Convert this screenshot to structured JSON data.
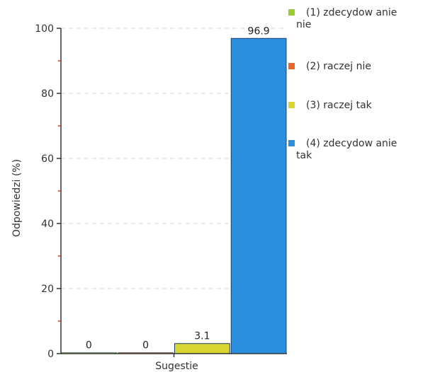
{
  "chart_data": {
    "type": "bar",
    "xlabel": "Sugestie",
    "ylabel": "Odpowiedzi (%)",
    "ylim": [
      0,
      100
    ],
    "yticks": [
      0,
      20,
      40,
      60,
      80,
      100
    ],
    "grid": true,
    "legend_position": "right",
    "series": [
      {
        "name": "(1) zdecydowanie nie",
        "legend_lines": [
          "(1) zdecydow anie",
          "nie"
        ],
        "value": 0,
        "value_label": "0",
        "color": "#9ACD32"
      },
      {
        "name": "(2) raczej nie",
        "legend_lines": [
          "(2) raczej nie"
        ],
        "value": 0,
        "value_label": "0",
        "color": "#E8662B"
      },
      {
        "name": "(3) raczej tak",
        "legend_lines": [
          "(3) raczej tak"
        ],
        "value": 3.1,
        "value_label": "3.1",
        "color": "#D9D531"
      },
      {
        "name": "(4) zdecydowanie tak",
        "legend_lines": [
          "(4) zdecydow anie",
          "tak"
        ],
        "value": 96.9,
        "value_label": "96.9",
        "color": "#2B8FDF"
      }
    ]
  }
}
